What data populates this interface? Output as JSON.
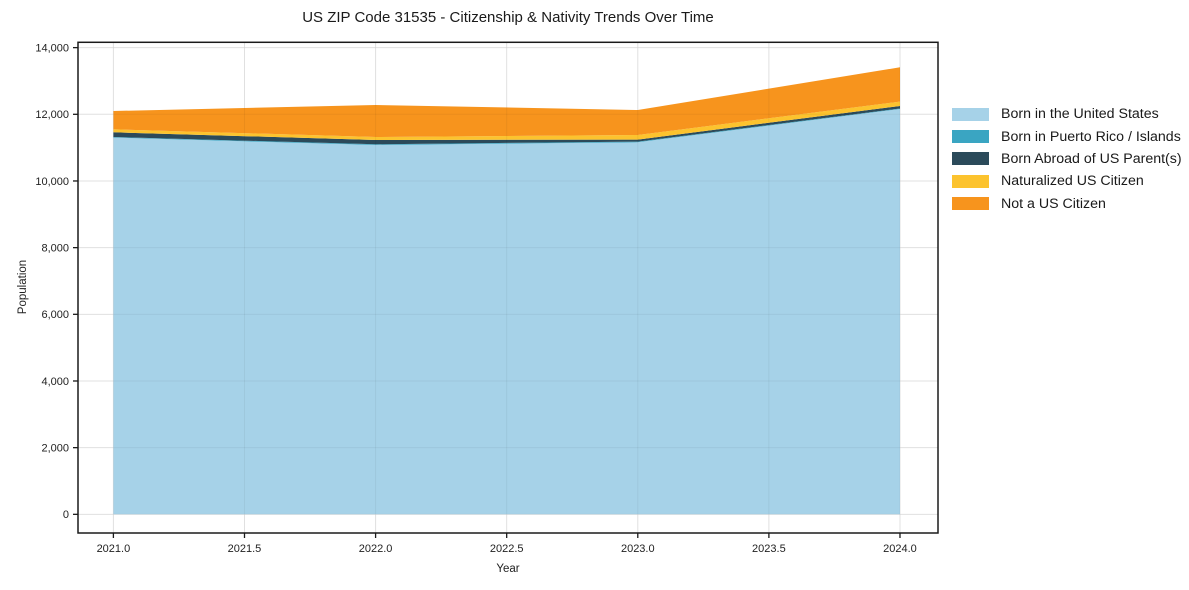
{
  "chart_data": {
    "type": "area",
    "stacked": true,
    "title": "US ZIP Code 31535 - Citizenship & Nativity Trends Over Time",
    "xlabel": "Year",
    "ylabel": "Population",
    "grid": true,
    "legend_position": "right",
    "x": [
      2021,
      2022,
      2023,
      2024
    ],
    "xlim": [
      2020.865,
      2024.145
    ],
    "ylim": [
      -560,
      14160
    ],
    "x_tick_values": [
      2021.0,
      2021.5,
      2022.0,
      2022.5,
      2023.0,
      2023.5,
      2024.0
    ],
    "x_tick_labels": [
      "2021.0",
      "2021.5",
      "2022.0",
      "2022.5",
      "2023.0",
      "2023.5",
      "2024.0"
    ],
    "y_tick_values": [
      0,
      2000,
      4000,
      6000,
      8000,
      10000,
      12000,
      14000
    ],
    "y_tick_labels": [
      "0",
      "2,000",
      "4,000",
      "6,000",
      "8,000",
      "10,000",
      "12,000",
      "14,000"
    ],
    "series": [
      {
        "name": "Born in the United States",
        "color": "#A6D2E8",
        "values": [
          11300,
          11080,
          11160,
          12160
        ]
      },
      {
        "name": "Born in Puerto Rico / Islands",
        "color": "#3AA5C2",
        "values": [
          20,
          20,
          20,
          15
        ]
      },
      {
        "name": "Born Abroad of US Parent(s)",
        "color": "#2B4A5A",
        "values": [
          140,
          130,
          60,
          75
        ]
      },
      {
        "name": "Naturalized US Citizen",
        "color": "#FCC32E",
        "values": [
          90,
          90,
          140,
          130
        ]
      },
      {
        "name": "Not a US Citizen",
        "color": "#F7941D",
        "values": [
          550,
          960,
          750,
          1030
        ]
      }
    ],
    "totals_by_year": [
      12100,
      12280,
      12130,
      13410
    ],
    "colors": {
      "spine": "#1a1a1a",
      "grid_under": "#ececec",
      "tick_text": "#222222",
      "background": "#ffffff"
    }
  }
}
